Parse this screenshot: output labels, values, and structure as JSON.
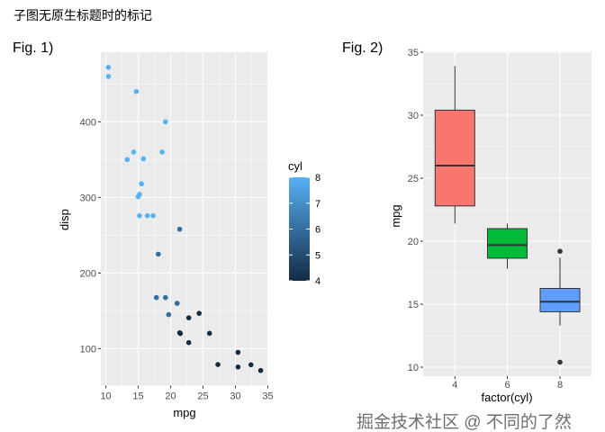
{
  "page_title": "子图无原生标题时的标记",
  "watermark": "掘金技术社区 @ 不同的了然",
  "chart_data": [
    {
      "type": "scatter",
      "tag": "Fig. 1)",
      "xlabel": "mpg",
      "ylabel": "disp",
      "xlim": [
        9.225,
        35.075
      ],
      "ylim": [
        51.1,
        492
      ],
      "xticks": [
        10,
        15,
        20,
        25,
        30,
        35
      ],
      "yticks": [
        100,
        200,
        300,
        400
      ],
      "grid": true,
      "legend": {
        "title": "cyl",
        "position": "right",
        "range": [
          4,
          8
        ],
        "ticks": [
          4,
          5,
          6,
          7,
          8
        ],
        "low_color": "#132B43",
        "high_color": "#56B1F7"
      },
      "points": [
        [
          21,
          160,
          6
        ],
        [
          21,
          160,
          6
        ],
        [
          22.8,
          108,
          4
        ],
        [
          21.4,
          258,
          6
        ],
        [
          18.7,
          360,
          8
        ],
        [
          18.1,
          225,
          6
        ],
        [
          14.3,
          360,
          8
        ],
        [
          24.4,
          146.7,
          4
        ],
        [
          22.8,
          140.8,
          4
        ],
        [
          19.2,
          167.6,
          6
        ],
        [
          17.8,
          167.6,
          6
        ],
        [
          16.4,
          275.8,
          8
        ],
        [
          17.3,
          275.8,
          8
        ],
        [
          15.2,
          275.8,
          8
        ],
        [
          10.4,
          472,
          8
        ],
        [
          10.4,
          460,
          8
        ],
        [
          14.7,
          440,
          8
        ],
        [
          32.4,
          78.7,
          4
        ],
        [
          30.4,
          75.7,
          4
        ],
        [
          33.9,
          71.1,
          4
        ],
        [
          21.5,
          120.1,
          4
        ],
        [
          15.5,
          318,
          8
        ],
        [
          15.2,
          304,
          8
        ],
        [
          13.3,
          350,
          8
        ],
        [
          19.2,
          400,
          8
        ],
        [
          27.3,
          79,
          4
        ],
        [
          26,
          120.3,
          4
        ],
        [
          30.4,
          95.1,
          4
        ],
        [
          15.8,
          351,
          8
        ],
        [
          19.7,
          145,
          6
        ],
        [
          15,
          301,
          8
        ],
        [
          21.4,
          121,
          4
        ]
      ]
    },
    {
      "type": "box",
      "tag": "Fig. 2)",
      "xlabel": "factor(cyl)",
      "ylabel": "mpg",
      "ylim": [
        8.9,
        35.1
      ],
      "yticks": [
        10,
        15,
        20,
        25,
        30,
        35
      ],
      "grid": true,
      "categories": [
        "4",
        "6",
        "8"
      ],
      "boxes": [
        {
          "min": 21.4,
          "q1": 22.8,
          "median": 26.0,
          "q3": 30.4,
          "max": 33.9,
          "outliers": [],
          "color": "#F8766D"
        },
        {
          "min": 17.8,
          "q1": 18.65,
          "median": 19.7,
          "q3": 21.0,
          "max": 21.4,
          "outliers": [],
          "color": "#00BA38"
        },
        {
          "min": 13.3,
          "q1": 14.4,
          "median": 15.2,
          "q3": 16.25,
          "max": 18.7,
          "outliers": [
            19.2,
            10.4
          ],
          "color": "#619CFF"
        }
      ]
    }
  ]
}
